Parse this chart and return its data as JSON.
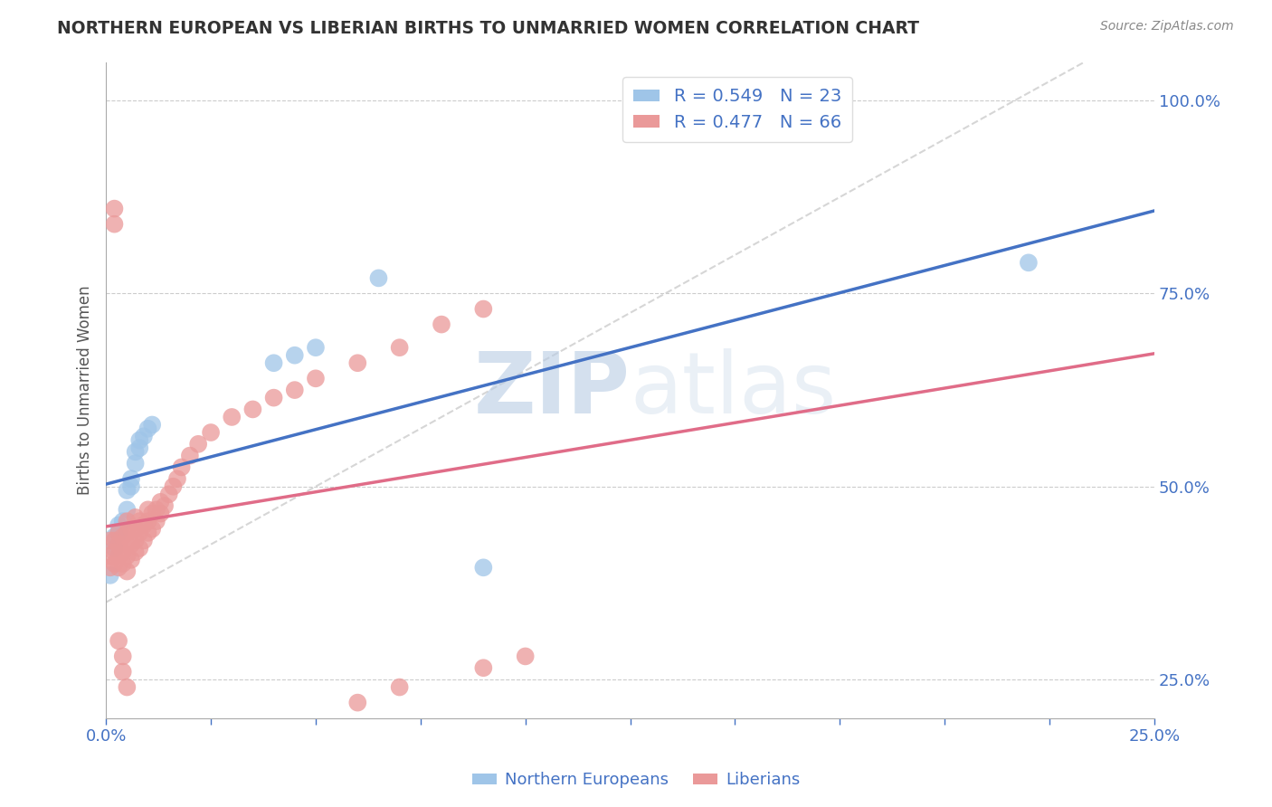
{
  "title": "NORTHERN EUROPEAN VS LIBERIAN BIRTHS TO UNMARRIED WOMEN CORRELATION CHART",
  "source": "Source: ZipAtlas.com",
  "ylabel_left": "Births to Unmarried Women",
  "x_range": [
    0.0,
    0.25
  ],
  "y_range": [
    0.2,
    1.05
  ],
  "y_ticks": [
    0.25,
    0.5,
    0.75,
    1.0
  ],
  "x_ticks_labeled": [
    0.0,
    0.25
  ],
  "legend1_R": "R = 0.549",
  "legend1_N": "N = 23",
  "legend2_R": "R = 0.477",
  "legend2_N": "N = 66",
  "blue_color": "#9fc5e8",
  "pink_color": "#ea9999",
  "line_blue": "#4472c4",
  "line_pink": "#e06c88",
  "line_dashed_color": "#cccccc",
  "watermark_zip": "ZIP",
  "watermark_atlas": "atlas",
  "blue_points_x": [
    0.001,
    0.002,
    0.002,
    0.003,
    0.003,
    0.004,
    0.005,
    0.005,
    0.006,
    0.006,
    0.007,
    0.007,
    0.008,
    0.008,
    0.009,
    0.01,
    0.011,
    0.04,
    0.045,
    0.05,
    0.065,
    0.09,
    0.22
  ],
  "blue_points_y": [
    0.385,
    0.42,
    0.435,
    0.44,
    0.45,
    0.455,
    0.47,
    0.495,
    0.5,
    0.51,
    0.53,
    0.545,
    0.55,
    0.56,
    0.565,
    0.575,
    0.58,
    0.66,
    0.67,
    0.68,
    0.77,
    0.395,
    0.79
  ],
  "pink_points_x": [
    0.001,
    0.001,
    0.001,
    0.002,
    0.002,
    0.002,
    0.003,
    0.003,
    0.003,
    0.003,
    0.004,
    0.004,
    0.004,
    0.005,
    0.005,
    0.005,
    0.005,
    0.005,
    0.006,
    0.006,
    0.006,
    0.007,
    0.007,
    0.007,
    0.007,
    0.008,
    0.008,
    0.008,
    0.009,
    0.009,
    0.01,
    0.01,
    0.01,
    0.011,
    0.011,
    0.012,
    0.012,
    0.013,
    0.013,
    0.014,
    0.015,
    0.016,
    0.017,
    0.018,
    0.02,
    0.022,
    0.025,
    0.03,
    0.035,
    0.04,
    0.045,
    0.05,
    0.06,
    0.07,
    0.08,
    0.09,
    0.002,
    0.002,
    0.003,
    0.004,
    0.004,
    0.005,
    0.06,
    0.07,
    0.09,
    0.1
  ],
  "pink_points_y": [
    0.395,
    0.41,
    0.43,
    0.4,
    0.415,
    0.43,
    0.395,
    0.41,
    0.425,
    0.44,
    0.4,
    0.415,
    0.435,
    0.39,
    0.41,
    0.425,
    0.44,
    0.455,
    0.405,
    0.425,
    0.445,
    0.415,
    0.43,
    0.445,
    0.46,
    0.42,
    0.44,
    0.455,
    0.43,
    0.45,
    0.44,
    0.455,
    0.47,
    0.445,
    0.465,
    0.455,
    0.47,
    0.465,
    0.48,
    0.475,
    0.49,
    0.5,
    0.51,
    0.525,
    0.54,
    0.555,
    0.57,
    0.59,
    0.6,
    0.615,
    0.625,
    0.64,
    0.66,
    0.68,
    0.71,
    0.73,
    0.84,
    0.86,
    0.3,
    0.28,
    0.26,
    0.24,
    0.22,
    0.24,
    0.265,
    0.28
  ]
}
